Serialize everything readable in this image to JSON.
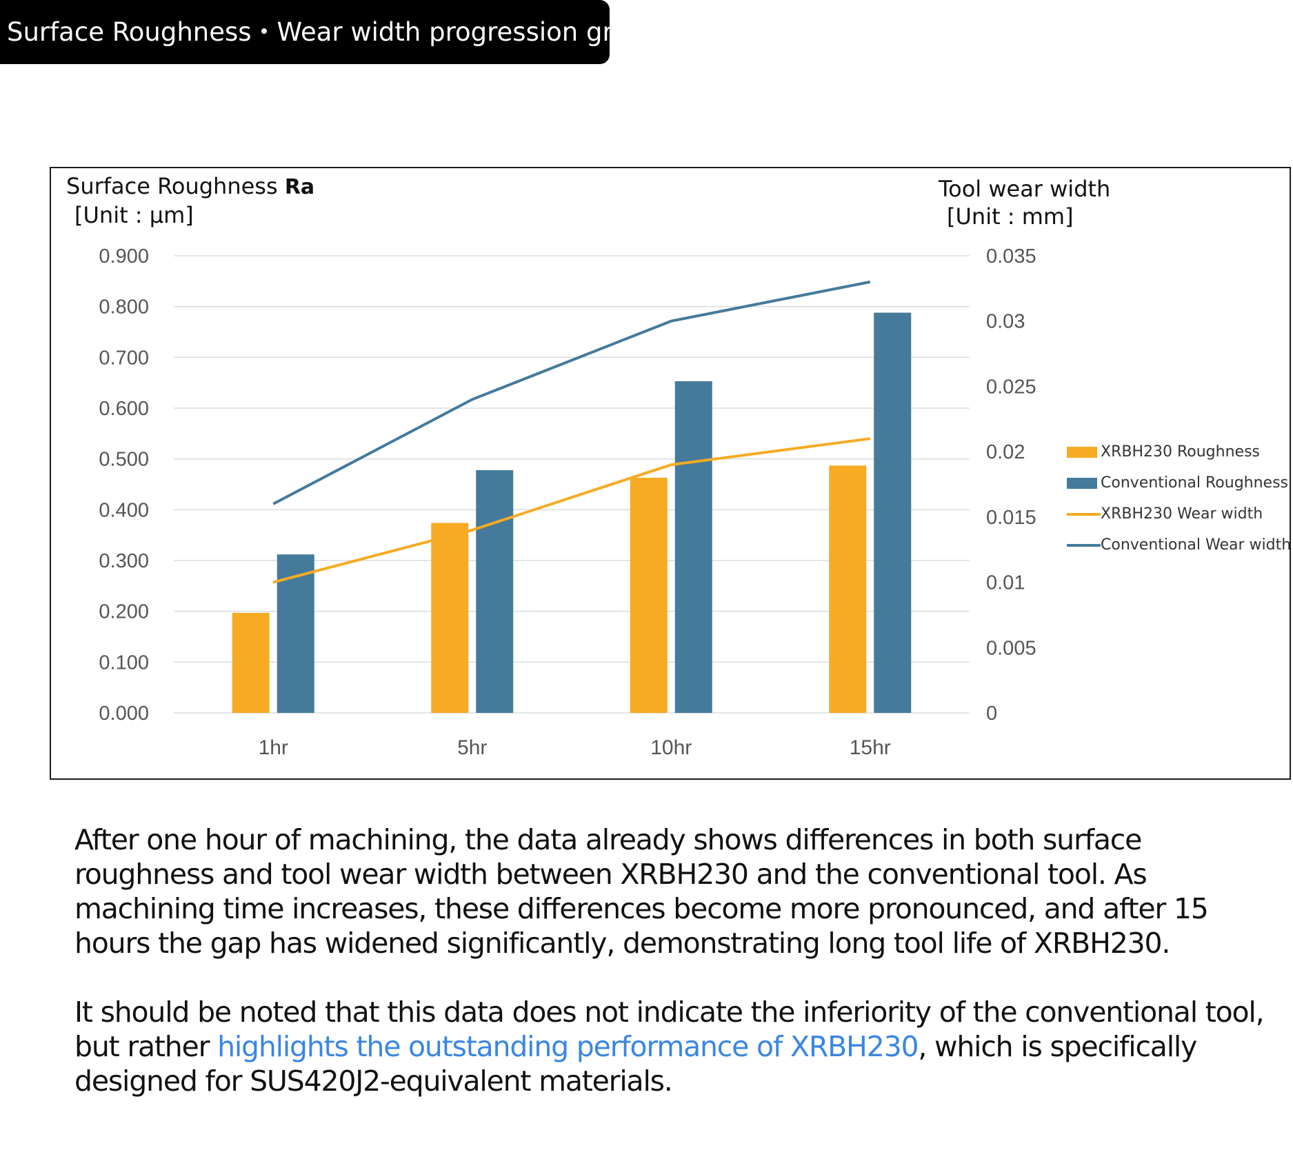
{
  "header": {
    "title": "Surface Roughness・Wear width progression graph"
  },
  "chart_data": {
    "type": "bar",
    "categories": [
      "1hr",
      "5hr",
      "10hr",
      "15hr"
    ],
    "left_axis": {
      "title": "Surface Roughness",
      "title_suffix": "Ra",
      "unit": "[Unit : μm]",
      "ylim": [
        0,
        0.9
      ],
      "ticks": [
        "0.000",
        "0.100",
        "0.200",
        "0.300",
        "0.400",
        "0.500",
        "0.600",
        "0.700",
        "0.800",
        "0.900"
      ]
    },
    "right_axis": {
      "title": "Tool wear width",
      "unit": "[Unit : mm]",
      "ylim": [
        0,
        0.035
      ],
      "ticks": [
        "0",
        "0.005",
        "0.01",
        "0.015",
        "0.02",
        "0.025",
        "0.03",
        "0.035"
      ]
    },
    "series": [
      {
        "name": "XRBH230 Roughness",
        "kind": "bar",
        "axis": "left",
        "color": "#F6AB23",
        "values": [
          0.197,
          0.374,
          0.463,
          0.487
        ]
      },
      {
        "name": "Conventional Roughness",
        "kind": "bar",
        "axis": "left",
        "color": "#457A9A",
        "values": [
          0.312,
          0.478,
          0.653,
          0.788
        ]
      },
      {
        "name": "XRBH230 Wear width",
        "kind": "line",
        "axis": "right",
        "color": "#F6AB23",
        "values": [
          0.01,
          0.014,
          0.019,
          0.021
        ]
      },
      {
        "name": "Conventional Wear width",
        "kind": "line",
        "axis": "right",
        "color": "#457A9A",
        "values": [
          0.016,
          0.024,
          0.03,
          0.033
        ]
      }
    ],
    "grid": true,
    "legend_position": "right"
  },
  "text": {
    "para1": "After one hour of machining, the data already shows differences in both surface roughness and tool wear width between XRBH230 and the conventional tool.  As machining time increases, these differences become more pronounced, and after 15 hours the gap has widened significantly, demonstrating long tool life of XRBH230.",
    "para2_before": "It should be noted that this data does not indicate the inferiority of the conventional tool, but rather ",
    "para2_highlight": "highlights the outstanding performance of XRBH230",
    "para2_after": ", which is specifically designed for SUS420J2-equivalent materials."
  },
  "colors": {
    "highlight": "#3a86e4",
    "gridline": "#d9dde0"
  }
}
